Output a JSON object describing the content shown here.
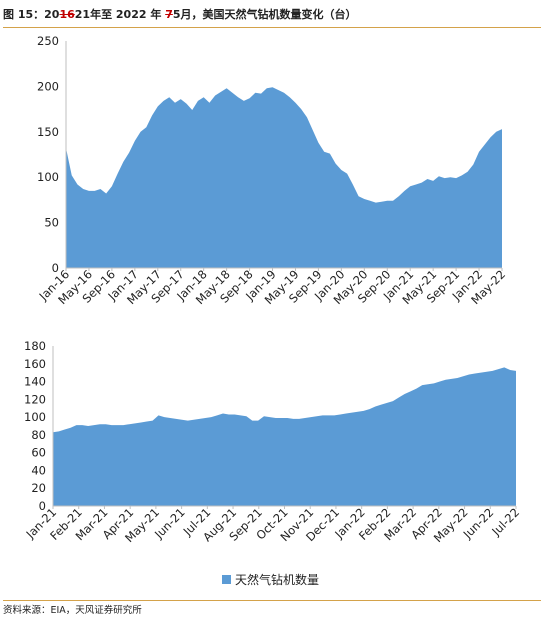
{
  "title": {
    "prefix": "图 15：20",
    "struck_a": "16",
    "mid_a": "21年至 2022 年 ",
    "struck_b": "7",
    "mid_b": "5月，美国天然气钻机数量变化（台）"
  },
  "source": "资料来源：EIA，天风证券研究所",
  "colors": {
    "area": "#5b9bd5",
    "axis": "#bfbfbf",
    "rule": "#d4a24a"
  },
  "chart_data": [
    {
      "type": "area",
      "title": "",
      "ylim": [
        0,
        250
      ],
      "yticks": [
        0,
        50,
        100,
        150,
        200,
        250
      ],
      "x_labels": [
        "Jan-16",
        "May-16",
        "Sep-16",
        "Jan-17",
        "May-17",
        "Sep-17",
        "Jan-18",
        "May-18",
        "Sep-18",
        "Jan-19",
        "May-19",
        "Sep-19",
        "Jan-20",
        "May-20",
        "Sep-20",
        "Jan-21",
        "May-21",
        "Sep-21",
        "Jan-22",
        "May-22"
      ],
      "series": [
        {
          "name": "",
          "values": [
            132,
            102,
            92,
            87,
            85,
            85,
            87,
            82,
            90,
            104,
            117,
            127,
            140,
            150,
            155,
            168,
            178,
            184,
            188,
            182,
            186,
            181,
            174,
            184,
            188,
            182,
            190,
            194,
            198,
            193,
            188,
            184,
            187,
            193,
            192,
            198,
            199,
            196,
            193,
            188,
            182,
            175,
            166,
            152,
            138,
            128,
            126,
            115,
            108,
            104,
            92,
            79,
            76,
            74,
            72,
            73,
            74,
            74,
            79,
            85,
            90,
            92,
            94,
            98,
            96,
            101,
            99,
            100,
            99,
            102,
            106,
            114,
            128,
            136,
            144,
            150,
            153
          ]
        }
      ]
    },
    {
      "type": "area",
      "title": "",
      "ylim": [
        0,
        180
      ],
      "yticks": [
        0,
        20,
        40,
        60,
        80,
        100,
        120,
        140,
        160,
        180
      ],
      "x_labels": [
        "Jan-21",
        "Feb-21",
        "Mar-21",
        "Apr-21",
        "May-21",
        "Jun-21",
        "Jul-21",
        "Aug-21",
        "Sep-21",
        "Oct-21",
        "Nov-21",
        "Dec-21",
        "Jan-22",
        "Feb-22",
        "Mar-22",
        "Apr-22",
        "May-22",
        "Jun-22",
        "Jul-22"
      ],
      "legend": "天然气钻机数量",
      "legend_position": "bottom",
      "series": [
        {
          "name": "天然气钻机数量",
          "values": [
            83,
            84,
            86,
            88,
            91,
            91,
            90,
            91,
            92,
            92,
            91,
            91,
            91,
            92,
            93,
            94,
            95,
            96,
            102,
            100,
            99,
            98,
            97,
            96,
            97,
            98,
            99,
            100,
            102,
            104,
            103,
            103,
            102,
            101,
            96,
            96,
            101,
            100,
            99,
            99,
            99,
            98,
            98,
            99,
            100,
            101,
            102,
            102,
            102,
            103,
            104,
            105,
            106,
            107,
            109,
            112,
            114,
            116,
            118,
            122,
            126,
            129,
            132,
            136,
            137,
            138,
            140,
            142,
            143,
            144,
            146,
            148,
            149,
            150,
            151,
            152,
            154,
            156,
            153,
            152
          ]
        }
      ]
    }
  ]
}
